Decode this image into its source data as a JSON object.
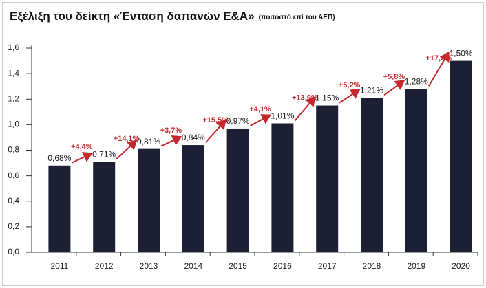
{
  "chart_data": {
    "type": "bar",
    "title": "Εξέλιξη του δείκτη «Ένταση δαπανών Ε&Α»",
    "subtitle": "(ποσοστό επί του ΑΕΠ)",
    "categories": [
      "2011",
      "2012",
      "2013",
      "2014",
      "2015",
      "2016",
      "2017",
      "2018",
      "2019",
      "2020"
    ],
    "values": [
      0.68,
      0.71,
      0.81,
      0.84,
      0.97,
      1.01,
      1.15,
      1.21,
      1.28,
      1.5
    ],
    "value_labels": [
      "0,68%",
      "0,71%",
      "0,81%",
      "0,84%",
      "0,97%",
      "1,01%",
      "1,15%",
      "1,21%",
      "1,28%",
      "1,50%"
    ],
    "annotations": [
      "+4,4%",
      "+14,1%",
      "+3,7%",
      "+15,5%",
      "+4,1%",
      "+13,9%",
      "+5,2%",
      "+5,8%",
      "+17,2%"
    ],
    "color": "#1d2035",
    "annotation_color": "#c4282d",
    "ylim": [
      0,
      1.6
    ],
    "yticks": [
      {
        "value": 0,
        "label": "0,0"
      },
      {
        "value": 0.2,
        "label": "0,2"
      },
      {
        "value": 0.4,
        "label": "0,4"
      },
      {
        "value": 0.6,
        "label": "0,6"
      },
      {
        "value": 0.8,
        "label": "0,8"
      },
      {
        "value": 1.0,
        "label": "1,0"
      },
      {
        "value": 1.2,
        "label": "1,2"
      },
      {
        "value": 1.4,
        "label": "1,4"
      },
      {
        "value": 1.6,
        "label": "1,6"
      }
    ],
    "grid": false
  }
}
